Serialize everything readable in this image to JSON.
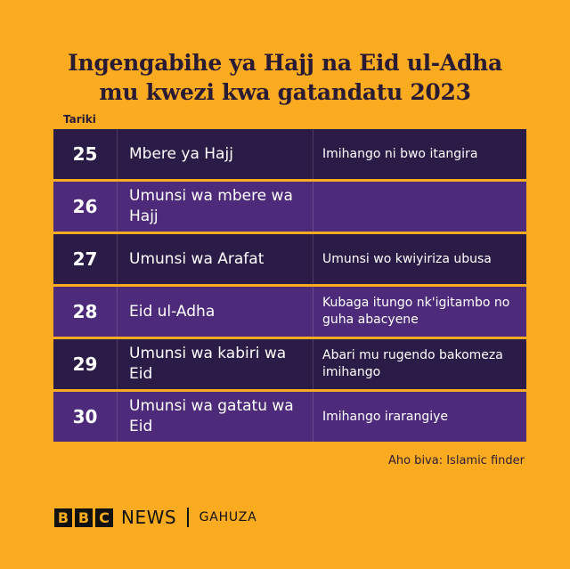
{
  "title": {
    "line1": "Ingengabihe ya Hajj na Eid ul-Adha",
    "line2": "mu kwezi kwa gatandatu 2023"
  },
  "column_label": "Tariki",
  "rows": [
    {
      "date": "25",
      "event": "Mbere ya Hajj",
      "note": "Imihango ni bwo itangira"
    },
    {
      "date": "26",
      "event": "Umunsi wa mbere wa Hajj",
      "note": ""
    },
    {
      "date": "27",
      "event": "Umunsi wa Arafat",
      "note": "Umunsi wo kwiyiriza ubusa"
    },
    {
      "date": "28",
      "event": "Eid ul-Adha",
      "note": "Kubaga itungo nk'igitambo no guha abacyene"
    },
    {
      "date": "29",
      "event": "Umunsi wa kabiri wa Eid",
      "note": "Abari mu rugendo bakomeza imihango"
    },
    {
      "date": "30",
      "event": "Umunsi wa gatatu wa Eid",
      "note": "Imihango irarangiye"
    }
  ],
  "source": "Aho biva: Islamic finder",
  "logo": {
    "b1": "B",
    "b2": "B",
    "b3": "C",
    "news": "NEWS",
    "service": "GAHUZA"
  },
  "colors": {
    "background": "#fbab1f",
    "row_dark": "#2b1b47",
    "row_light": "#4d2b7a",
    "text_dark": "#2a1b35"
  }
}
